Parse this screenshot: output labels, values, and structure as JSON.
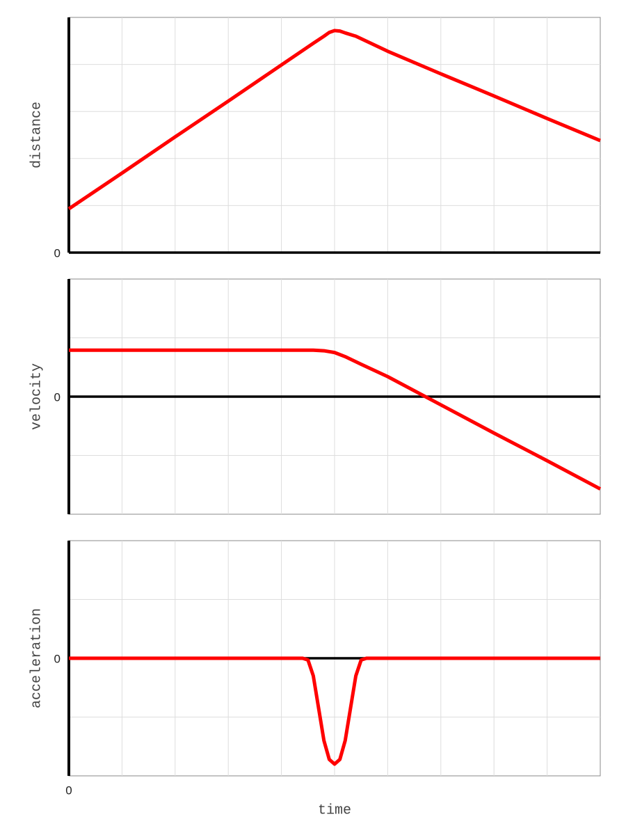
{
  "chart_data": [
    {
      "type": "line",
      "ylabel": "distance",
      "x": [
        0,
        1,
        2,
        3,
        4,
        4.6,
        4.8,
        4.9,
        5,
        5.1,
        5.2,
        5.4,
        6,
        7,
        8,
        9,
        10
      ],
      "series": [
        {
          "color": "#ff0000",
          "values": [
            0.93,
            1.69,
            2.46,
            3.22,
            3.99,
            4.45,
            4.6,
            4.68,
            4.72,
            4.71,
            4.67,
            4.6,
            4.28,
            3.8,
            3.33,
            2.85,
            2.38
          ]
        }
      ],
      "xlim": [
        0,
        10
      ],
      "xgrid": [
        1,
        2,
        3,
        4,
        5,
        6,
        7,
        8,
        9
      ],
      "ylim": [
        0,
        5
      ],
      "yticks": [
        0
      ],
      "ygrid": [
        1,
        2,
        3,
        4
      ]
    },
    {
      "type": "line",
      "ylabel": "velocity",
      "x": [
        0,
        1,
        2,
        3,
        4,
        4.6,
        4.8,
        5,
        5.2,
        5.5,
        6,
        7,
        8,
        9,
        10
      ],
      "series": [
        {
          "color": "#ff0000",
          "values": [
            0.79,
            0.79,
            0.79,
            0.79,
            0.79,
            0.79,
            0.78,
            0.75,
            0.68,
            0.55,
            0.34,
            -0.14,
            -0.62,
            -1.09,
            -1.57
          ]
        }
      ],
      "xlim": [
        0,
        10
      ],
      "xgrid": [
        1,
        2,
        3,
        4,
        5,
        6,
        7,
        8,
        9
      ],
      "ylim": [
        -2,
        2
      ],
      "yticks": [
        0
      ],
      "ygrid": [
        -1,
        1
      ]
    },
    {
      "type": "line",
      "ylabel": "acceleration",
      "xlabel": "time",
      "x": [
        0,
        4.4,
        4.5,
        4.6,
        4.7,
        4.8,
        4.9,
        5,
        5.1,
        5.2,
        5.3,
        5.4,
        5.5,
        5.6,
        10
      ],
      "series": [
        {
          "color": "#ff0000",
          "values": [
            0,
            0,
            -0.03,
            -0.3,
            -0.85,
            -1.4,
            -1.72,
            -1.8,
            -1.72,
            -1.4,
            -0.85,
            -0.3,
            -0.03,
            0,
            0
          ]
        }
      ],
      "xlim": [
        0,
        10
      ],
      "xticks": [
        0
      ],
      "xgrid": [
        1,
        2,
        3,
        4,
        5,
        6,
        7,
        8,
        9
      ],
      "ylim": [
        -2,
        2
      ],
      "yticks": [
        0
      ],
      "ygrid": [
        -1,
        1
      ]
    }
  ]
}
